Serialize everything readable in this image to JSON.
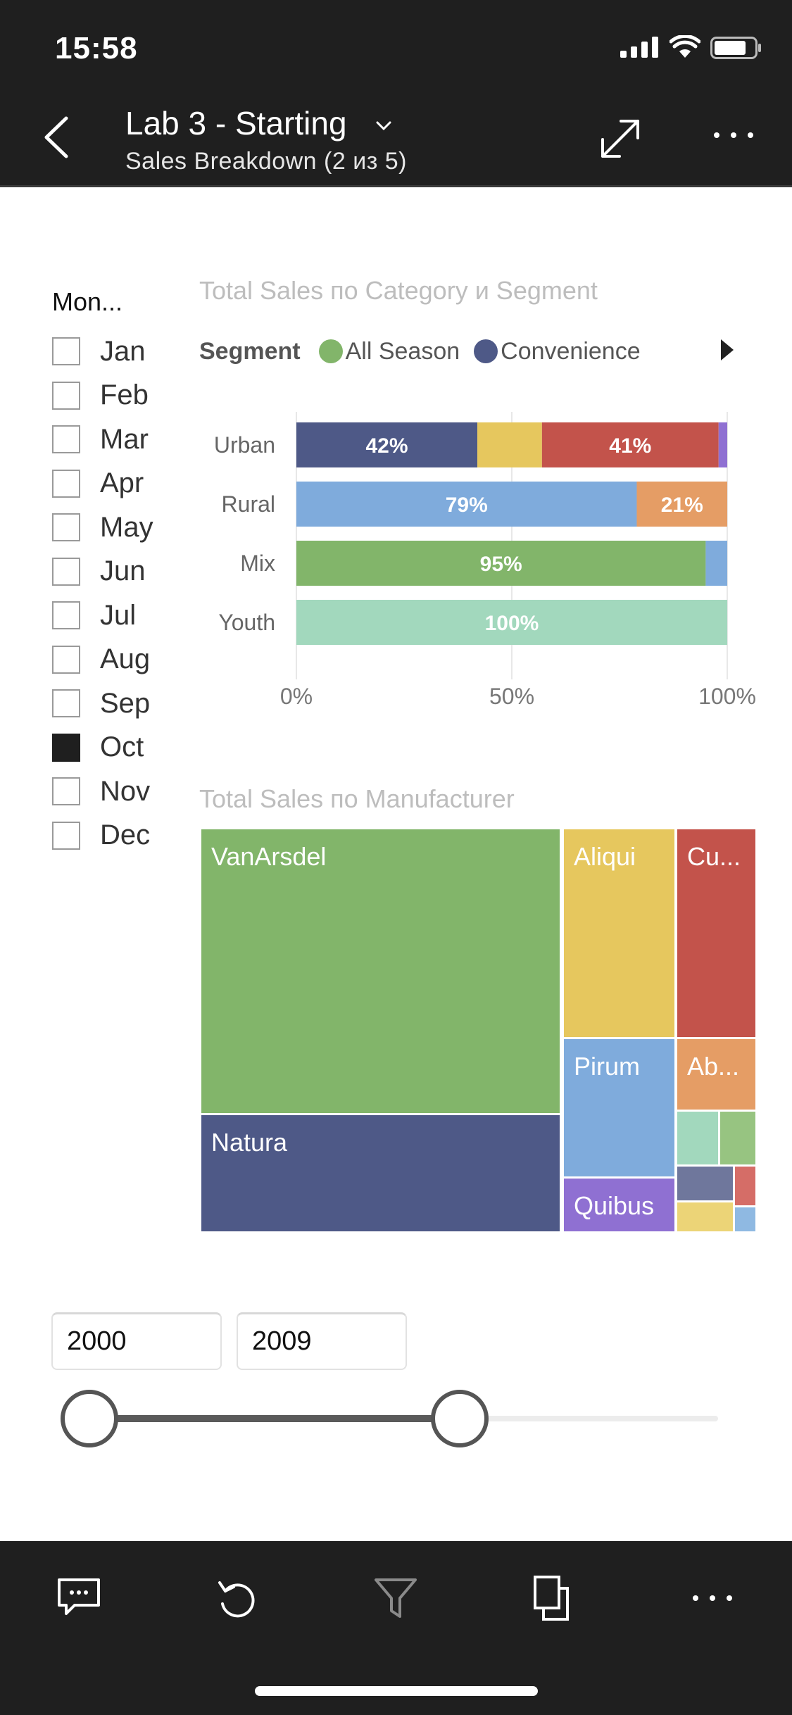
{
  "status_bar": {
    "time": "15:58"
  },
  "header": {
    "title": "Lab 3 - Starting",
    "subtitle": "Sales Breakdown (2 из 5)"
  },
  "colors": {
    "topbar": "#1f1f1f",
    "all_season": "#82b56a",
    "convenience": "#4e5987",
    "accent_yellow": "#e6c75e",
    "accent_red": "#c3534b",
    "accent_blue": "#7fabdc",
    "accent_orange": "#e59d65",
    "accent_purple": "#8f70d2",
    "accent_teal": "#a2d8bd"
  },
  "month_slicer": {
    "title": "Mon...",
    "items": [
      {
        "label": "Jan",
        "checked": false
      },
      {
        "label": "Feb",
        "checked": false
      },
      {
        "label": "Mar",
        "checked": false
      },
      {
        "label": "Apr",
        "checked": false
      },
      {
        "label": "May",
        "checked": false
      },
      {
        "label": "Jun",
        "checked": false
      },
      {
        "label": "Jul",
        "checked": false
      },
      {
        "label": "Aug",
        "checked": false
      },
      {
        "label": "Sep",
        "checked": false
      },
      {
        "label": "Oct",
        "checked": true
      },
      {
        "label": "Nov",
        "checked": false
      },
      {
        "label": "Dec",
        "checked": false
      }
    ]
  },
  "bar_chart": {
    "title": "Total Sales по Category и Segment",
    "legend_title": "Segment",
    "legend": [
      {
        "name": "All Season",
        "color": "#82b56a"
      },
      {
        "name": "Convenience",
        "color": "#4e5987"
      }
    ]
  },
  "chart_data": [
    {
      "type": "bar",
      "orientation": "horizontal",
      "stacking": "100%",
      "title": "Total Sales по Category и Segment",
      "categories": [
        "Urban",
        "Rural",
        "Mix",
        "Youth"
      ],
      "x_ticks": [
        "0%",
        "50%",
        "100%"
      ],
      "xlim": [
        0,
        100
      ],
      "series": [
        {
          "values": [
            42,
            0,
            0,
            0
          ],
          "color": "#4e5987",
          "labels": [
            "42%",
            "",
            "",
            ""
          ]
        },
        {
          "values": [
            15,
            0,
            0,
            0
          ],
          "color": "#e6c75e",
          "labels": [
            "",
            "",
            "",
            ""
          ]
        },
        {
          "values": [
            41,
            0,
            0,
            0
          ],
          "color": "#c3534b",
          "labels": [
            "41%",
            "",
            "",
            ""
          ]
        },
        {
          "values": [
            2,
            0,
            0,
            0
          ],
          "color": "#8f70d2",
          "labels": [
            "",
            "",
            "",
            ""
          ]
        },
        {
          "values": [
            0,
            79,
            0,
            0
          ],
          "color": "#7fabdc",
          "labels": [
            "",
            "79%",
            "",
            ""
          ]
        },
        {
          "values": [
            0,
            21,
            0,
            0
          ],
          "color": "#e59d65",
          "labels": [
            "",
            "21%",
            "",
            ""
          ]
        },
        {
          "values": [
            0,
            0,
            95,
            0
          ],
          "color": "#82b56a",
          "labels": [
            "",
            "",
            "95%",
            ""
          ]
        },
        {
          "values": [
            0,
            0,
            5,
            0
          ],
          "color": "#7fabdc",
          "labels": [
            "",
            "",
            "",
            ""
          ]
        },
        {
          "values": [
            0,
            0,
            0,
            100
          ],
          "color": "#a2d8bd",
          "labels": [
            "",
            "",
            "",
            "100%"
          ]
        }
      ],
      "grid": true,
      "legend_position": "top-left"
    },
    {
      "type": "treemap",
      "title": "Total Sales по Manufacturer",
      "items": [
        {
          "label": "VanArsdel",
          "color": "#82b56a"
        },
        {
          "label": "Natura",
          "color": "#4e5987"
        },
        {
          "label": "Aliqui",
          "color": "#e6c75e"
        },
        {
          "label": "Pirum",
          "color": "#7fabdc"
        },
        {
          "label": "Quibus",
          "color": "#8f70d2"
        },
        {
          "label": "Cu...",
          "color": "#c3534b"
        },
        {
          "label": "Ab...",
          "color": "#e59d65"
        },
        {
          "label": "",
          "color": "#a2d8bd"
        },
        {
          "label": "",
          "color": "#97c481"
        },
        {
          "label": "",
          "color": "#6f779c"
        },
        {
          "label": "",
          "color": "#d56d67"
        },
        {
          "label": "",
          "color": "#ecd477"
        },
        {
          "label": "",
          "color": "#8fb9e2"
        }
      ]
    }
  ],
  "range_slicer": {
    "from_value": "2000",
    "to_value": "2009",
    "min_fraction": 0,
    "max_fraction": 0.59
  },
  "bottom_bar": {
    "icons": [
      "comment-icon",
      "undo-icon",
      "filter-icon",
      "copy-icon",
      "more-icon"
    ]
  }
}
